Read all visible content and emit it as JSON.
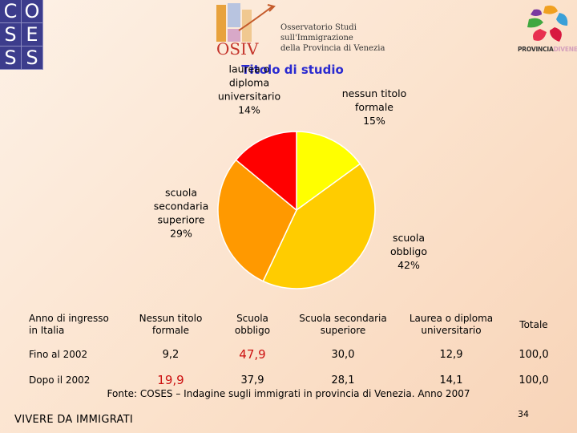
{
  "header": {
    "coses_letters": [
      "C",
      "O",
      "S",
      "E",
      "S",
      "S"
    ],
    "osiv_mark": "OSIV",
    "osiv_lines": [
      "Osservatorio Studi",
      "sull'Immigrazione",
      "della Provincia di Venezia"
    ],
    "provincia_bold": "PROVINCIA",
    "provincia_light": "DIVENEZIA"
  },
  "chart_data": {
    "type": "pie",
    "title": "Titolo di studio",
    "slices": [
      {
        "label_lines": [
          "nessun titolo",
          "formale",
          "15%"
        ],
        "value": 15,
        "color": "#ffff00"
      },
      {
        "label_lines": [
          "scuola",
          "obbligo",
          "42%"
        ],
        "value": 42,
        "color": "#ffcc00"
      },
      {
        "label_lines": [
          "scuola",
          "secondaria",
          "superiore",
          "29%"
        ],
        "value": 29,
        "color": "#ff9900"
      },
      {
        "label_lines": [
          "laurea o",
          "diploma",
          "universitario",
          "14%"
        ],
        "value": 14,
        "color": "#ff0000"
      }
    ]
  },
  "table": {
    "headers": [
      "Anno di ingresso\nin Italia",
      "Nessun titolo\nformale",
      "Scuola\nobbligo",
      "Scuola secondaria\nsuperiore",
      "Laurea o diploma\nuniversitario",
      "Totale"
    ],
    "rows": [
      {
        "cells": [
          "Fino al 2002",
          "9,2",
          "47,9",
          "30,0",
          "12,9",
          "100,0"
        ],
        "highlight": 2
      },
      {
        "cells": [
          "Dopo il 2002",
          "19,9",
          "37,9",
          "28,1",
          "14,1",
          "100,0"
        ],
        "highlight": 1
      }
    ],
    "highlight_color": "#cc1010"
  },
  "source": "Fonte: COSES – Indagine sugli immigrati in provincia di Venezia. Anno 2007",
  "footer_left": "VIVERE DA IMMIGRATI",
  "page_number": "34"
}
